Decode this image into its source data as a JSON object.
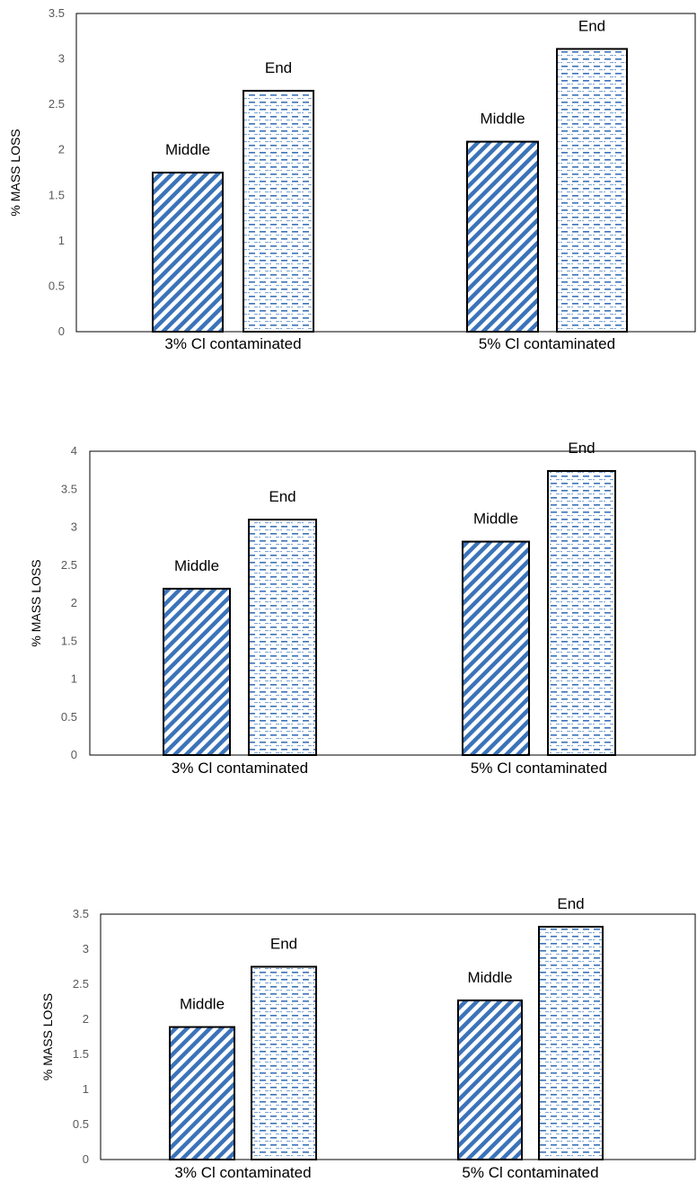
{
  "chart_data": [
    {
      "type": "bar",
      "ylabel": "% MASS LOSS",
      "ylim": [
        0,
        3.5
      ],
      "yticks": [
        "0",
        "0.5",
        "1",
        "1.5",
        "2",
        "2.5",
        "3",
        "3.5"
      ],
      "categories": [
        "3% Cl contaminated",
        "5% Cl contaminated"
      ],
      "series": [
        {
          "values": [
            1.75,
            2.09
          ],
          "labels": [
            "Middle",
            "Middle"
          ]
        },
        {
          "values": [
            2.65,
            3.11
          ],
          "labels": [
            "End",
            "End"
          ]
        }
      ],
      "grid": false,
      "legend": "none"
    },
    {
      "type": "bar",
      "ylabel": "% MASS LOSS",
      "ylim": [
        0,
        4
      ],
      "yticks": [
        "0",
        "0.5",
        "1",
        "1.5",
        "2",
        "2.5",
        "3",
        "3.5",
        "4"
      ],
      "categories": [
        "3% Cl contaminated",
        "5% Cl contaminated"
      ],
      "series": [
        {
          "values": [
            2.19,
            2.81
          ],
          "labels": [
            "Middle",
            "Middle"
          ]
        },
        {
          "values": [
            3.1,
            3.74
          ],
          "labels": [
            "End",
            "End"
          ]
        }
      ],
      "grid": false,
      "legend": "none"
    },
    {
      "type": "bar",
      "ylabel": "% MASS LOSS",
      "ylim": [
        0,
        3.5
      ],
      "yticks": [
        "0",
        "0.5",
        "1",
        "1.5",
        "2",
        "2.5",
        "3",
        "3.5"
      ],
      "categories": [
        "3% Cl contaminated",
        "5% Cl contaminated"
      ],
      "series": [
        {
          "values": [
            1.89,
            2.27
          ],
          "labels": [
            "Middle",
            "Middle"
          ]
        },
        {
          "values": [
            2.75,
            3.32
          ],
          "labels": [
            "End",
            "End"
          ]
        }
      ],
      "grid": false,
      "legend": "none"
    }
  ],
  "colors": {
    "hatch": "#3b73b9",
    "outline": "#000000",
    "axis": "#000000"
  }
}
